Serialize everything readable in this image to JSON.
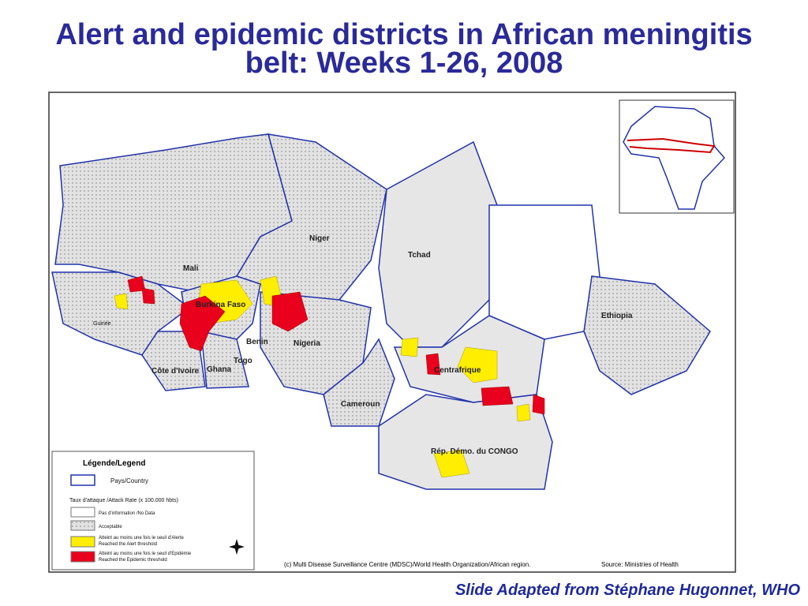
{
  "title": "Alert and epidemic districts in African meningitis belt: Weeks 1-26, 2008",
  "map": {
    "countries": [
      "Mali",
      "Niger",
      "Tchad",
      "Burkina Faso",
      "Benin",
      "Nigeria",
      "Togo",
      "Ghana",
      "Côte d'Ivoire",
      "Guinée",
      "Cameroun",
      "Centrafrique",
      "Rép. Démo. du CONGO",
      "Ethiopia"
    ]
  },
  "legend": {
    "title": "Légende/Legend",
    "country": "Pays/Country",
    "rate_header": "Taux d'attaque /Attack Rate  (x 100.000 hbts)",
    "items": [
      {
        "fr": "Pas d'information /No Data",
        "en": ""
      },
      {
        "fr": "Acceptable",
        "en": ""
      },
      {
        "fr": "Atteint au moins une fois le seuil d'Alerte",
        "en": "Reached the Alert threshold"
      },
      {
        "fr": "Atteint au moins une fois le seuil d'Epidémie",
        "en": "Reached the Epidemic threshold"
      }
    ]
  },
  "credit": "(c) Multi Disease Surveillance Centre (MDSC)/World Health Organization/African region.",
  "source": "Source: Ministries of Health",
  "caption": "Slide Adapted from Stéphane Hugonnet, WHO"
}
